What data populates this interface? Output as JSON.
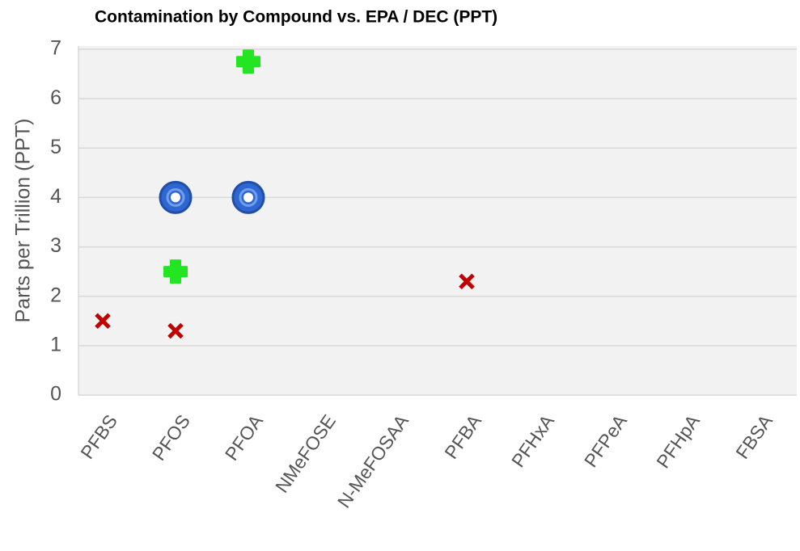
{
  "chart_data": {
    "type": "scatter",
    "title": "Contamination by Compound vs. EPA / DEC  (PPT)",
    "y_label": "Parts per Trillion (PPT)",
    "categories": [
      "PFBS",
      "PFOS",
      "PFOA",
      "NMeFOSE",
      "N-MeFOSAA",
      "PFBA",
      "PFHxA",
      "PFPeA",
      "PFHpA",
      "FBSA"
    ],
    "series": [
      {
        "color": "#c00000",
        "marker": "x",
        "values": [
          1.5,
          1.3,
          null,
          null,
          null,
          2.3,
          null,
          null,
          null,
          null
        ]
      },
      {
        "color": "#22e622",
        "marker": "plus",
        "values": [
          null,
          2.5,
          6.75,
          null,
          null,
          null,
          null,
          null,
          null,
          null
        ]
      },
      {
        "color": "#2f66d0",
        "marker": "ring",
        "values": [
          null,
          4,
          4,
          null,
          null,
          null,
          null,
          null,
          null,
          null
        ]
      }
    ],
    "ylim": [
      0,
      7
    ],
    "yticks": [
      0,
      1,
      2,
      3,
      4,
      5,
      6,
      7
    ],
    "grid": true
  }
}
